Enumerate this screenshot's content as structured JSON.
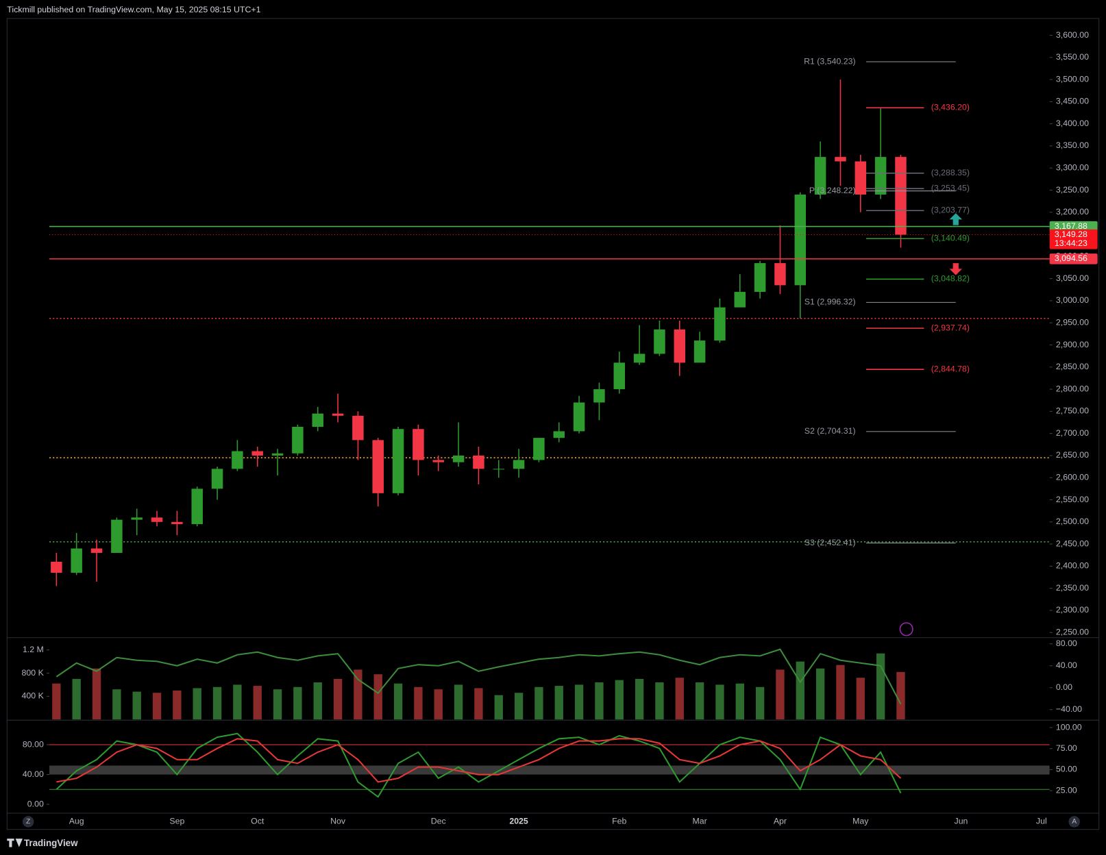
{
  "chart_data": [
    {
      "type": "candlestick",
      "title": "Tickmill published on TradingView.com, May 15, 2025 08:15 UTC+1",
      "source": "TradingView",
      "time_axis_buttons": [
        "Z",
        "A"
      ],
      "up_color": "#2e9b2e",
      "down_color": "#f23645",
      "categories": [
        null,
        "Aug",
        null,
        null,
        null,
        null,
        "Sep",
        null,
        null,
        null,
        "Oct",
        null,
        null,
        null,
        "Nov",
        null,
        null,
        null,
        null,
        "Dec",
        null,
        null,
        null,
        "2025",
        null,
        null,
        null,
        null,
        "Feb",
        null,
        null,
        null,
        "Mar",
        null,
        null,
        null,
        "Apr",
        null,
        null,
        null,
        "May",
        null,
        null,
        null,
        null,
        "Jun",
        null,
        null,
        null,
        "Jul",
        null
      ],
      "open": [
        2410,
        2385,
        2440,
        2430,
        2505,
        2510,
        2500,
        2495,
        2575,
        2620,
        2660,
        2650,
        2655,
        2715,
        2745,
        2740,
        2685,
        2565,
        2710,
        2640,
        2635,
        2650,
        2620,
        2620,
        2640,
        2690,
        2705,
        2770,
        2800,
        2860,
        2880,
        2935,
        2860,
        2910,
        2985,
        3020,
        3085,
        3035,
        3240,
        3325,
        3315,
        3240,
        3325,
        null,
        null,
        null,
        null,
        null,
        null,
        null,
        null
      ],
      "high": [
        2430,
        2475,
        2460,
        2510,
        2530,
        2525,
        2525,
        2580,
        2625,
        2685,
        2670,
        2665,
        2720,
        2760,
        2790,
        2750,
        2690,
        2715,
        2720,
        2650,
        2725,
        2670,
        2640,
        2665,
        2690,
        2725,
        2785,
        2815,
        2885,
        2945,
        2955,
        2955,
        2930,
        3005,
        3060,
        3090,
        3170,
        3245,
        3360,
        3500,
        3330,
        3435,
        3330,
        null,
        null,
        null,
        null,
        null,
        null,
        null,
        null
      ],
      "low": [
        2355,
        2380,
        2365,
        2430,
        2470,
        2490,
        2470,
        2490,
        2550,
        2615,
        2625,
        2605,
        2650,
        2705,
        2725,
        2640,
        2535,
        2560,
        2605,
        2615,
        2625,
        2585,
        2600,
        2600,
        2635,
        2680,
        2700,
        2730,
        2790,
        2855,
        2875,
        2830,
        2860,
        2905,
        2985,
        3005,
        3015,
        2960,
        3230,
        3260,
        3200,
        3230,
        3120,
        null,
        null,
        null,
        null,
        null,
        null,
        null,
        null
      ],
      "close": [
        2385,
        2440,
        2430,
        2505,
        2510,
        2500,
        2495,
        2575,
        2620,
        2660,
        2650,
        2655,
        2715,
        2745,
        2740,
        2685,
        2565,
        2710,
        2640,
        2635,
        2650,
        2620,
        2620,
        2640,
        2690,
        2705,
        2770,
        2800,
        2860,
        2880,
        2935,
        2860,
        2910,
        2985,
        3020,
        3085,
        3035,
        3240,
        3325,
        3315,
        3240,
        3325,
        3149.28,
        null,
        null,
        null,
        null,
        null,
        null,
        null,
        null
      ],
      "ylim": [
        2240,
        3638
      ],
      "yticks": [
        {
          "value": 2250,
          "label": "2,250.00"
        },
        {
          "value": 2300,
          "label": "2,300.00"
        },
        {
          "value": 2350,
          "label": "2,350.00"
        },
        {
          "value": 2400,
          "label": "2,400.00"
        },
        {
          "value": 2450,
          "label": "2,450.00"
        },
        {
          "value": 2500,
          "label": "2,500.00"
        },
        {
          "value": 2550,
          "label": "2,550.00"
        },
        {
          "value": 2600,
          "label": "2,600.00"
        },
        {
          "value": 2650,
          "label": "2,650.00"
        },
        {
          "value": 2700,
          "label": "2,700.00"
        },
        {
          "value": 2750,
          "label": "2,750.00"
        },
        {
          "value": 2800,
          "label": "2,800.00"
        },
        {
          "value": 2850,
          "label": "2,850.00"
        },
        {
          "value": 2900,
          "label": "2,900.00"
        },
        {
          "value": 2950,
          "label": "2,950.00"
        },
        {
          "value": 3000,
          "label": "3,000.00"
        },
        {
          "value": 3050,
          "label": "3,050.00"
        },
        {
          "value": 3100,
          "label": "3,100.00"
        },
        {
          "value": 3150,
          "label": "3,150.00"
        },
        {
          "value": 3200,
          "label": "3,200.00"
        },
        {
          "value": 3250,
          "label": "3,250.00"
        },
        {
          "value": 3300,
          "label": "3,300.00"
        },
        {
          "value": 3350,
          "label": "3,350.00"
        },
        {
          "value": 3400,
          "label": "3,400.00"
        },
        {
          "value": 3450,
          "label": "3,450.00"
        },
        {
          "value": 3500,
          "label": "3,500.00"
        },
        {
          "value": 3550,
          "label": "3,550.00"
        },
        {
          "value": 3600,
          "label": "3,600.00"
        }
      ],
      "pivot_levels": [
        {
          "value": 3540.23,
          "label": "R1 (3,540.23)",
          "color": "#9598a1"
        },
        {
          "value": 3248.22,
          "label": "P (3,248.22)",
          "color": "#9598a1"
        },
        {
          "value": 2996.32,
          "label": "S1 (2,996.32)",
          "color": "#9598a1"
        },
        {
          "value": 2704.31,
          "label": "S2 (2,704.31)",
          "color": "#9598a1"
        },
        {
          "value": 2452.41,
          "label": "S3 (2,452.41)",
          "color": "#9598a1"
        }
      ],
      "zone_levels": [
        {
          "value": 3436.2,
          "label": "(3,436.20)",
          "color": "#f23645"
        },
        {
          "value": 3288.35,
          "label": "(3,288.35)",
          "color": "#6a6d78"
        },
        {
          "value": 3253.45,
          "label": "(3,253.45)",
          "color": "#6a6d78"
        },
        {
          "value": 3203.77,
          "label": "(3,203.77)",
          "color": "#6a6d78"
        },
        {
          "value": 3140.49,
          "label": "(3,140.49)",
          "color": "#2e9b2e"
        },
        {
          "value": 3048.82,
          "label": "(3,048.82)",
          "color": "#2e9b2e"
        },
        {
          "value": 2937.74,
          "label": "(2,937.74)",
          "color": "#f23645"
        },
        {
          "value": 2844.78,
          "label": "(2,844.78)",
          "color": "#f23645"
        }
      ],
      "price_tags": [
        {
          "value": 3167.88,
          "label": "3,167.88",
          "color": "#4caf50",
          "line": "solid"
        },
        {
          "value": 3149.28,
          "label": "3,149.28",
          "sublabel": "13:44:23",
          "color": "#f7141c",
          "line": "dotted"
        },
        {
          "value": 3094.56,
          "label": "3,094.56",
          "color": "#f23645",
          "line": "solid"
        }
      ],
      "dotted_lines": [
        {
          "value": 2960,
          "color": "#f23645"
        },
        {
          "value": 2645,
          "color": "#f5a623"
        },
        {
          "value": 2455,
          "color": "#4caf50"
        }
      ]
    },
    {
      "type": "bar",
      "values": [
        620000,
        700000,
        880000,
        520000,
        480000,
        460000,
        500000,
        540000,
        560000,
        600000,
        580000,
        520000,
        560000,
        640000,
        700000,
        860000,
        780000,
        620000,
        560000,
        520000,
        600000,
        540000,
        420000,
        460000,
        560000,
        580000,
        600000,
        640000,
        680000,
        700000,
        640000,
        720000,
        640000,
        600000,
        620000,
        560000,
        860000,
        1000000,
        880000,
        940000,
        720000,
        1140000,
        820000
      ],
      "ylim": [
        0,
        1400000
      ],
      "yticks": [
        {
          "value": 400000,
          "label": "400 K"
        },
        {
          "value": 800000,
          "label": "800 K"
        },
        {
          "value": 1200000,
          "label": "1.2 M"
        }
      ],
      "y2lim": [
        -58,
        90
      ],
      "y2ticks": [
        {
          "value": -40,
          "label": "−40.00"
        },
        {
          "value": 0,
          "label": "0.00"
        },
        {
          "value": 40,
          "label": "40.00"
        },
        {
          "value": 80,
          "label": "80.00"
        }
      ],
      "series": [
        {
          "color": "#3c8d3c",
          "axis": "y2",
          "values": [
            20,
            45,
            30,
            55,
            50,
            48,
            40,
            52,
            45,
            60,
            65,
            55,
            50,
            58,
            62,
            15,
            -10,
            35,
            42,
            40,
            48,
            30,
            38,
            45,
            52,
            55,
            60,
            58,
            62,
            65,
            60,
            50,
            42,
            55,
            60,
            58,
            70,
            10,
            62,
            50,
            45,
            40,
            -30
          ]
        }
      ]
    },
    {
      "type": "line",
      "ylim": [
        -11,
        112
      ],
      "yticks": [
        {
          "value": 0,
          "label": "0.00"
        },
        {
          "value": 40,
          "label": "40.00"
        },
        {
          "value": 80,
          "label": "80.00"
        }
      ],
      "y2lim": [
        -1,
        108
      ],
      "y2ticks": [
        {
          "value": 25,
          "label": "25.00"
        },
        {
          "value": 50,
          "label": "50.00"
        },
        {
          "value": 75,
          "label": "75.00"
        },
        {
          "value": 100,
          "label": "100.00"
        }
      ],
      "hlines": [
        {
          "value": 80,
          "color": "#f23645"
        },
        {
          "value": 20,
          "color": "#2e9b2e"
        }
      ],
      "series": [
        {
          "color": "#2e9b2e",
          "values": [
            20,
            45,
            60,
            85,
            80,
            70,
            40,
            75,
            90,
            95,
            70,
            40,
            65,
            88,
            85,
            30,
            10,
            55,
            70,
            35,
            50,
            30,
            45,
            60,
            75,
            88,
            90,
            80,
            92,
            85,
            75,
            30,
            55,
            80,
            90,
            85,
            60,
            20,
            90,
            80,
            40,
            70,
            15
          ]
        },
        {
          "color": "#e53935",
          "values": [
            30,
            35,
            50,
            70,
            80,
            75,
            60,
            60,
            75,
            88,
            85,
            60,
            55,
            70,
            80,
            60,
            30,
            35,
            50,
            50,
            45,
            40,
            40,
            50,
            60,
            75,
            85,
            85,
            88,
            88,
            82,
            60,
            55,
            65,
            80,
            85,
            75,
            45,
            60,
            80,
            65,
            60,
            35
          ]
        }
      ]
    }
  ]
}
